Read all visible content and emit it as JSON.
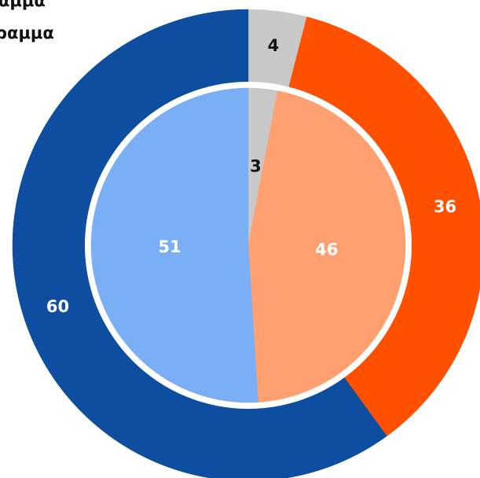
{
  "chart_data": {
    "type": "donut",
    "series": [
      {
        "name": "αμμα",
        "values": [
          4,
          36,
          60
        ],
        "colors": [
          "#c8c8c8",
          "#ff5000",
          "#0d4ea0"
        ],
        "label_colors": [
          "#111111",
          "#ffffff",
          "#ffffff"
        ]
      },
      {
        "name": "ραμμα",
        "values": [
          3,
          46,
          51
        ],
        "colors": [
          "#c8c8c8",
          "#ffa070",
          "#7aaff5"
        ],
        "label_colors": [
          "#111111",
          "#ffffff",
          "#ffffff"
        ]
      }
    ]
  }
}
